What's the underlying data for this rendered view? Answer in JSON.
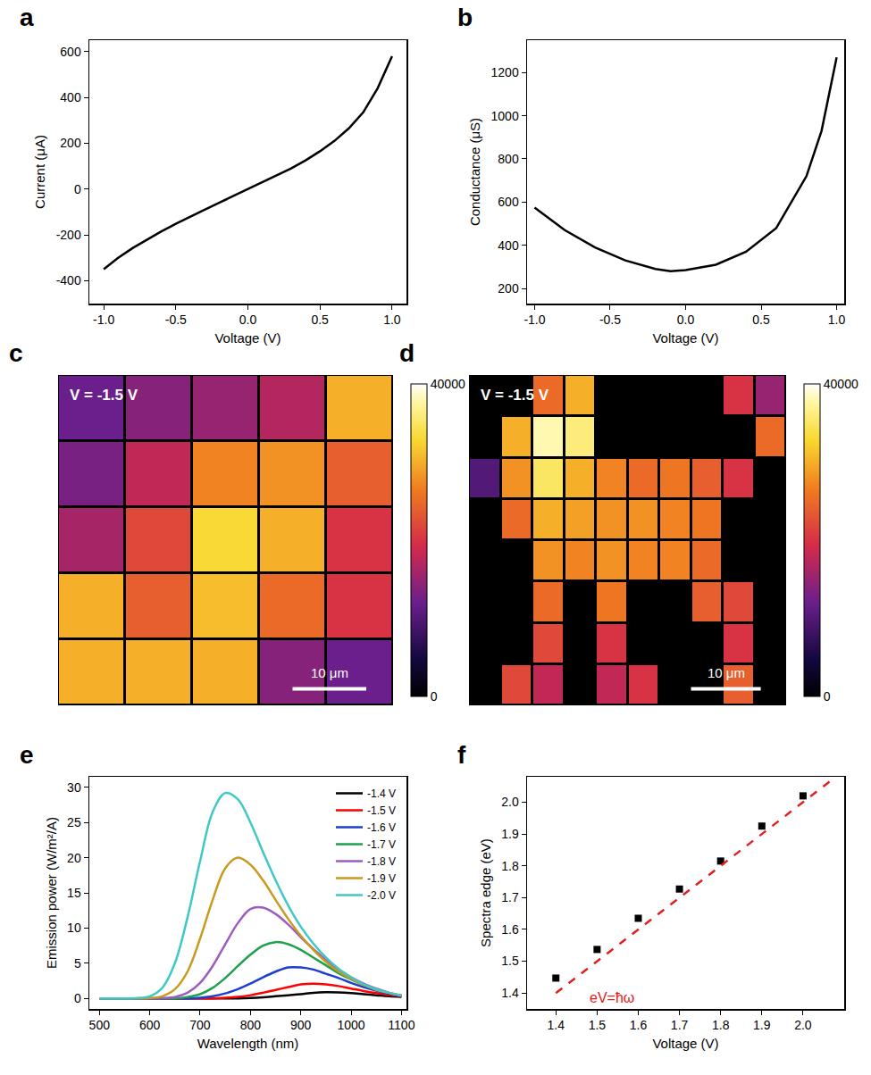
{
  "chart_data": [
    {
      "panel_label": "a",
      "type": "line",
      "x_label": "Voltage (V)",
      "y_label": "Current (μA)",
      "x": [
        -1.0,
        -0.9,
        -0.8,
        -0.7,
        -0.6,
        -0.5,
        -0.4,
        -0.3,
        -0.2,
        -0.1,
        0,
        0.1,
        0.2,
        0.3,
        0.4,
        0.5,
        0.6,
        0.7,
        0.8,
        0.9,
        1.0
      ],
      "values": [
        -350,
        -300,
        -258,
        -220,
        -185,
        -152,
        -120,
        -90,
        -60,
        -30,
        0,
        28,
        58,
        90,
        125,
        165,
        210,
        265,
        335,
        440,
        580
      ],
      "color": "#000000",
      "xlim": [
        -1.1,
        1.1
      ],
      "xticks": [
        {
          "value": -1,
          "label": "-1.0"
        },
        -0.5,
        {
          "value": 0,
          "label": "0.0"
        },
        0.5,
        {
          "value": 1,
          "label": "1.0"
        }
      ],
      "ylim": [
        -500,
        650
      ],
      "yticks": [
        -400,
        -200,
        0,
        200,
        400,
        600
      ],
      "grid": false
    },
    {
      "panel_label": "b",
      "type": "line",
      "x_label": "Voltage (V)",
      "y_label": "Conductance (μS)",
      "x": [
        -1.0,
        -0.8,
        -0.6,
        -0.4,
        -0.2,
        -0.1,
        0,
        0.2,
        0.4,
        0.6,
        0.8,
        0.9,
        1.0
      ],
      "values": [
        575,
        470,
        390,
        330,
        290,
        280,
        285,
        310,
        370,
        480,
        720,
        930,
        1270
      ],
      "color": "#000000",
      "xlim": [
        -1.05,
        1.05
      ],
      "xticks": [
        {
          "value": -1,
          "label": "-1.0"
        },
        -0.5,
        {
          "value": 0,
          "label": "0.0"
        },
        0.5,
        {
          "value": 1,
          "label": "1.0"
        }
      ],
      "ylim": [
        130,
        1350
      ],
      "yticks": [
        200,
        400,
        600,
        800,
        1000,
        1200
      ],
      "grid": false
    },
    {
      "panel_label": "c",
      "type": "heatmap",
      "annotations": [
        "V = -1.5 V"
      ],
      "scale_bar": "10 μm",
      "cells": [
        [
          12000,
          14000,
          15000,
          17000,
          30000
        ],
        [
          13000,
          18000,
          27000,
          28000,
          24000
        ],
        [
          16000,
          22000,
          33000,
          30000,
          20000
        ],
        [
          30000,
          24000,
          31000,
          25000,
          20000
        ],
        [
          30000,
          30000,
          30000,
          14000,
          12000
        ]
      ],
      "zlim": [
        0,
        40000
      ],
      "zticks": [
        0,
        40000
      ],
      "tick_labels": false
    },
    {
      "panel_label": "d",
      "type": "heatmap",
      "annotations": [
        "V = -1.5 V"
      ],
      "scale_bar": "10 μm",
      "cells": [
        [
          0,
          0,
          25000,
          30000,
          0,
          0,
          0,
          0,
          20000,
          15000
        ],
        [
          0,
          30000,
          38000,
          36000,
          0,
          0,
          0,
          0,
          0,
          25000
        ],
        [
          10000,
          28000,
          35000,
          30000,
          27000,
          25000,
          26000,
          24000,
          20000,
          0
        ],
        [
          0,
          25000,
          30000,
          29000,
          28000,
          28000,
          27000,
          26000,
          0,
          0
        ],
        [
          0,
          0,
          28000,
          27000,
          28000,
          27000,
          27000,
          25000,
          0,
          0
        ],
        [
          0,
          0,
          25000,
          0,
          26000,
          0,
          0,
          24000,
          22000,
          0
        ],
        [
          0,
          0,
          22000,
          0,
          20000,
          0,
          0,
          0,
          20000,
          0
        ],
        [
          0,
          22000,
          18000,
          0,
          18000,
          20000,
          0,
          0,
          24000,
          0
        ]
      ],
      "zlim": [
        0,
        40000
      ],
      "zticks": [
        0,
        40000
      ],
      "tick_labels": false
    },
    {
      "panel_label": "e",
      "type": "line",
      "x_label": "Wavelength (nm)",
      "y_label": "Emission power (W/m²/A)",
      "x": [
        500,
        525,
        550,
        575,
        600,
        625,
        650,
        675,
        700,
        725,
        750,
        775,
        800,
        825,
        850,
        875,
        900,
        925,
        950,
        975,
        1000,
        1025,
        1050,
        1075,
        1100
      ],
      "series": [
        {
          "name": "-1.4 V",
          "color": "#000000",
          "values": [
            0,
            0,
            0,
            0,
            0,
            0,
            0,
            0,
            0,
            0,
            0,
            0,
            0.05,
            0.15,
            0.3,
            0.45,
            0.6,
            0.8,
            0.88,
            0.85,
            0.75,
            0.6,
            0.45,
            0.3,
            0.2
          ]
        },
        {
          "name": "-1.5 V",
          "color": "#ff0000",
          "values": [
            0,
            0,
            0,
            0,
            0,
            0,
            0,
            0,
            0,
            0,
            0.1,
            0.2,
            0.45,
            0.8,
            1.2,
            1.6,
            2.0,
            2.1,
            2.0,
            1.75,
            1.4,
            1.05,
            0.75,
            0.5,
            0.3
          ]
        },
        {
          "name": "-1.6 V",
          "color": "#1c3fd0",
          "values": [
            0,
            0,
            0,
            0,
            0,
            0,
            0,
            0,
            0.1,
            0.3,
            0.7,
            1.3,
            2.1,
            3.0,
            3.8,
            4.4,
            4.4,
            4.1,
            3.5,
            2.9,
            2.2,
            1.6,
            1.1,
            0.7,
            0.35
          ]
        },
        {
          "name": "-1.7 V",
          "color": "#1fa050",
          "values": [
            0,
            0,
            0,
            0,
            0,
            0,
            0,
            0.2,
            0.6,
            1.5,
            2.9,
            4.6,
            6.2,
            7.5,
            8.0,
            7.7,
            6.9,
            5.8,
            4.7,
            3.6,
            2.7,
            1.9,
            1.3,
            0.8,
            0.4
          ]
        },
        {
          "name": "-1.8 V",
          "color": "#9c5cc0",
          "values": [
            0,
            0,
            0,
            0,
            0,
            0.05,
            0.2,
            0.8,
            2.2,
            4.6,
            7.7,
            10.7,
            12.7,
            12.9,
            12.0,
            10.5,
            8.7,
            7.0,
            5.5,
            4.1,
            3.0,
            2.1,
            1.4,
            0.8,
            0.4
          ]
        },
        {
          "name": "-1.9 V",
          "color": "#c89a1e",
          "values": [
            0,
            0,
            0,
            0,
            0.05,
            0.3,
            1.3,
            3.8,
            8.5,
            14.0,
            18.5,
            20.0,
            19.0,
            16.8,
            14.0,
            11.3,
            8.9,
            6.9,
            5.2,
            3.8,
            2.8,
            1.9,
            1.2,
            0.8,
            0.4
          ]
        },
        {
          "name": "-2.0 V",
          "color": "#40c8c8",
          "values": [
            0,
            0,
            0,
            0.05,
            0.3,
            1.5,
            5.0,
            11.5,
            19.5,
            26.5,
            29.2,
            28.3,
            25.0,
            20.8,
            16.8,
            13.2,
            10.2,
            7.8,
            5.8,
            4.2,
            3.0,
            2.0,
            1.3,
            0.8,
            0.4
          ]
        }
      ],
      "xlim": [
        480,
        1110
      ],
      "xticks": [
        500,
        600,
        700,
        800,
        900,
        1000,
        1100
      ],
      "ylim": [
        -1.5,
        31.5
      ],
      "yticks": [
        0,
        5,
        10,
        15,
        20,
        25,
        30
      ],
      "legend": "top right",
      "grid": false
    },
    {
      "panel_label": "f",
      "type": "scatter",
      "x_label": "Voltage (V)",
      "y_label": "Spectra edge (eV)",
      "series": [
        {
          "type": "scatter",
          "marker": "square",
          "color": "#000000",
          "x": [
            1.4,
            1.5,
            1.6,
            1.7,
            1.8,
            1.9,
            2.0
          ],
          "values": [
            1.447,
            1.537,
            1.635,
            1.727,
            1.815,
            1.925,
            2.02
          ]
        },
        {
          "name": "eV=ħω",
          "type": "line",
          "line_style": "dashed",
          "color": "#e02020",
          "x": [
            1.4,
            2.07
          ],
          "values": [
            1.4,
            2.07
          ]
        }
      ],
      "xlim": [
        1.33,
        2.1
      ],
      "xticks": [
        1.4,
        1.5,
        1.6,
        1.7,
        1.8,
        1.9,
        {
          "value": 2,
          "label": "2.0"
        }
      ],
      "ylim": [
        1.35,
        2.08
      ],
      "yticks": [
        1.4,
        1.5,
        1.6,
        1.7,
        1.8,
        1.9,
        {
          "value": 2,
          "label": "2.0"
        }
      ],
      "grid": false
    }
  ]
}
